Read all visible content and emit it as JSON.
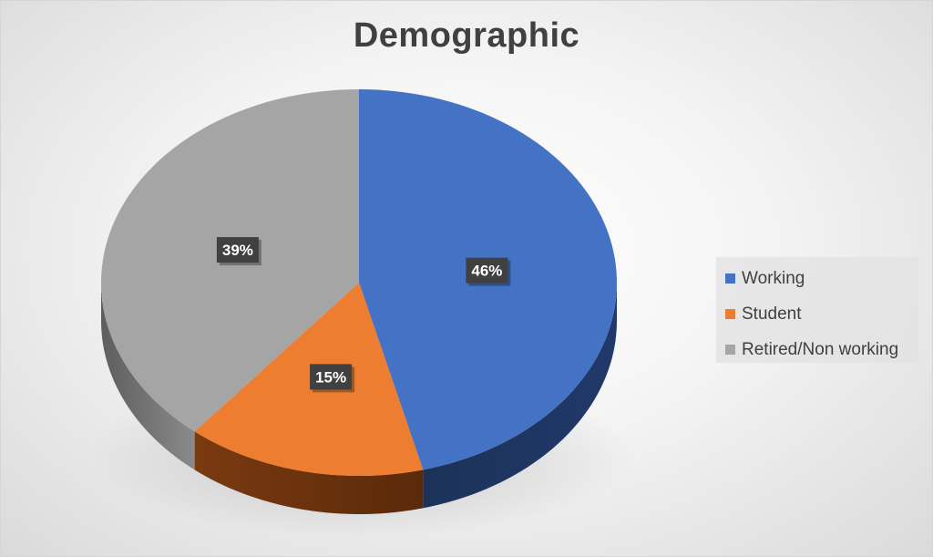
{
  "chart_data": {
    "type": "pie",
    "title": "Demographic",
    "categories": [
      "Working",
      "Student",
      "Retired/Non working"
    ],
    "values": [
      46,
      15,
      39
    ],
    "labels": [
      "46%",
      "15%",
      "39%"
    ],
    "colors": [
      "#4472C4",
      "#ED7D31",
      "#A5A5A5"
    ],
    "legend_position": "right",
    "style": "3d-pie"
  }
}
